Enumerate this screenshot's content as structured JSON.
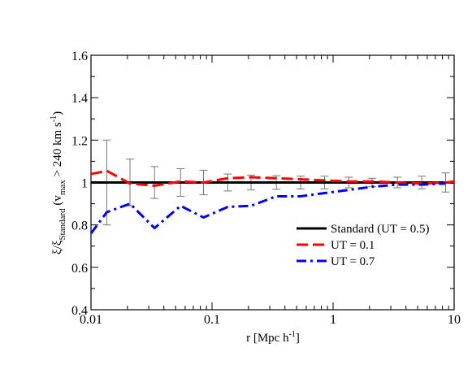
{
  "chart_data": {
    "type": "line",
    "x_scale": "log",
    "xlim": [
      0.01,
      10
    ],
    "ylim": [
      0.4,
      1.6
    ],
    "x_ticks": [
      0.01,
      0.1,
      1,
      10
    ],
    "x_tick_labels": [
      "0.01",
      "0.1",
      "1",
      "10"
    ],
    "y_ticks": [
      0.4,
      0.6,
      0.8,
      1.0,
      1.2,
      1.4,
      1.6
    ],
    "y_tick_labels": [
      "0.4",
      "0.6",
      "0.8",
      "1",
      "1.2",
      "1.4",
      "1.6"
    ],
    "xlabel": {
      "text": "r [Mpc h",
      "sup": "-1",
      "tail": "]"
    },
    "ylabel": {
      "xi": "ξ/ξ",
      "sub1": "Standard",
      "mid": " (v",
      "sub2": "max",
      "rest": " > 240 km s",
      "sup": "-1",
      "tail": ")"
    },
    "legend_position": "right",
    "grid": false,
    "series": [
      {
        "name": "Standard (UT = 0.5)",
        "color": "#000000",
        "style": "solid",
        "x": [
          0.01,
          10
        ],
        "y": [
          1.0,
          1.0
        ]
      },
      {
        "name": "UT = 0.1",
        "color": "#ff0000",
        "style": "dashed",
        "x": [
          0.01,
          0.0135,
          0.021,
          0.0335,
          0.055,
          0.085,
          0.135,
          0.21,
          0.34,
          0.54,
          0.85,
          1.35,
          2.1,
          3.4,
          5.4,
          8.5,
          10
        ],
        "y": [
          1.04,
          1.055,
          0.995,
          0.985,
          1.005,
          1.0,
          1.02,
          1.025,
          1.02,
          1.015,
          1.01,
          1.005,
          1.005,
          1.0,
          0.995,
          1.0,
          1.005
        ]
      },
      {
        "name": "UT = 0.7",
        "color": "#0000ff",
        "style": "dashdot",
        "x": [
          0.01,
          0.0135,
          0.021,
          0.0335,
          0.055,
          0.085,
          0.135,
          0.21,
          0.34,
          0.54,
          0.85,
          1.35,
          2.1,
          3.4,
          5.4,
          8.5
        ],
        "y": [
          0.76,
          0.86,
          0.9,
          0.785,
          0.89,
          0.835,
          0.885,
          0.89,
          0.935,
          0.935,
          0.95,
          0.965,
          0.98,
          0.99,
          0.99,
          0.995
        ]
      }
    ],
    "error_bars": {
      "color": "#777777",
      "x": [
        0.0135,
        0.021,
        0.0335,
        0.055,
        0.085,
        0.135,
        0.21,
        0.34,
        0.54,
        0.85,
        1.35,
        2.1,
        3.4,
        5.4,
        8.5
      ],
      "center": [
        1.0,
        1.0,
        1.0,
        1.0,
        1.0,
        1.0,
        1.0,
        1.0,
        1.0,
        1.0,
        1.0,
        1.0,
        1.0,
        1.0,
        1.0
      ],
      "half_width": [
        0.2,
        0.11,
        0.075,
        0.065,
        0.058,
        0.04,
        0.035,
        0.032,
        0.03,
        0.03,
        0.025,
        0.02,
        0.025,
        0.03,
        0.045
      ]
    }
  }
}
